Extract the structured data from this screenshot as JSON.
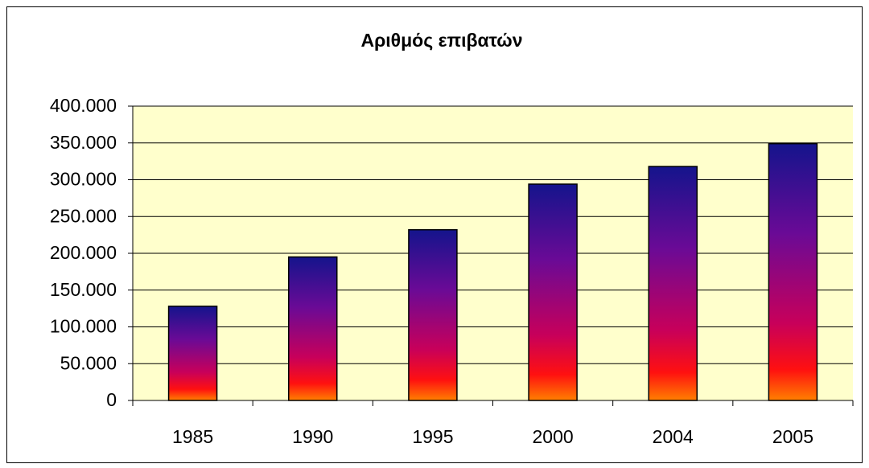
{
  "chart_data": {
    "type": "bar",
    "title": "Αριθμός επιβατών",
    "categories": [
      "1985",
      "1990",
      "1995",
      "2000",
      "2004",
      "2005"
    ],
    "values": [
      128000,
      195000,
      232000,
      294000,
      318000,
      349000
    ],
    "ylim": [
      0,
      400000
    ],
    "yticks": [
      0,
      {
        "value": 50000,
        "label": "50.000"
      },
      {
        "value": 100000,
        "label": "100.000"
      },
      {
        "value": 150000,
        "label": "150.000"
      },
      {
        "value": 200000,
        "label": "200.000"
      },
      {
        "value": 250000,
        "label": "250.000"
      },
      {
        "value": 300000,
        "label": "300.000"
      },
      {
        "value": 350000,
        "label": "350.000"
      },
      {
        "value": 400000,
        "label": "400.000"
      }
    ],
    "grid": true
  }
}
